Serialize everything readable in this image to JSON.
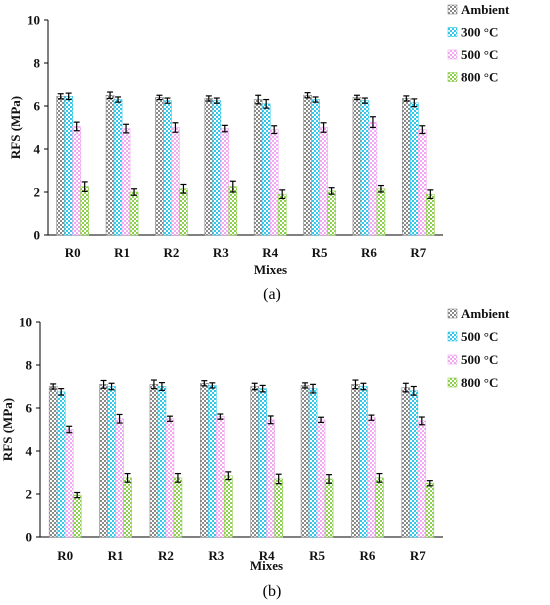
{
  "chart_data": [
    {
      "type": "bar",
      "caption": "(a)",
      "xlabel": "Mixes",
      "ylabel": "RFS (MPa)",
      "ylim": [
        0,
        10
      ],
      "yticks": [
        0,
        2,
        4,
        6,
        8,
        10
      ],
      "categories": [
        "R0",
        "R1",
        "R2",
        "R3",
        "R4",
        "R5",
        "R6",
        "R7"
      ],
      "legend_position": "right",
      "error_bars": true,
      "series": [
        {
          "name": "Ambient",
          "color": "#8a8a8a",
          "pattern": "checker",
          "values": [
            6.45,
            6.5,
            6.4,
            6.35,
            6.3,
            6.5,
            6.4,
            6.35
          ],
          "errors": [
            0.12,
            0.15,
            0.1,
            0.12,
            0.2,
            0.12,
            0.1,
            0.12
          ]
        },
        {
          "name": "300 °C",
          "color": "#33c8ea",
          "pattern": "checker",
          "values": [
            6.45,
            6.3,
            6.25,
            6.25,
            6.1,
            6.3,
            6.25,
            6.15
          ],
          "errors": [
            0.15,
            0.12,
            0.12,
            0.12,
            0.2,
            0.12,
            0.12,
            0.18
          ]
        },
        {
          "name": "500 °C",
          "color": "#f0a8f0",
          "pattern": "checker",
          "values": [
            5.05,
            4.95,
            5.0,
            4.95,
            4.9,
            5.0,
            5.25,
            4.9
          ],
          "errors": [
            0.2,
            0.2,
            0.22,
            0.15,
            0.18,
            0.22,
            0.25,
            0.18
          ]
        },
        {
          "name": "800 °C",
          "color": "#8fcf4f",
          "pattern": "checker",
          "values": [
            2.25,
            2.0,
            2.15,
            2.25,
            1.9,
            2.05,
            2.15,
            1.9
          ],
          "errors": [
            0.22,
            0.15,
            0.2,
            0.25,
            0.2,
            0.15,
            0.15,
            0.2
          ]
        }
      ]
    },
    {
      "type": "bar",
      "caption": "(b)",
      "xlabel": "Mixes",
      "ylabel": "RFS (MPa)",
      "ylim": [
        0,
        10
      ],
      "yticks": [
        0,
        2,
        4,
        6,
        8,
        10
      ],
      "categories": [
        "R0",
        "R1",
        "R2",
        "R3",
        "R4",
        "R5",
        "R6",
        "R7"
      ],
      "legend_position": "right",
      "error_bars": true,
      "series": [
        {
          "name": "Ambient",
          "color": "#8a8a8a",
          "pattern": "checker",
          "values": [
            7.0,
            7.1,
            7.1,
            7.15,
            7.0,
            7.05,
            7.1,
            6.95
          ],
          "errors": [
            0.12,
            0.18,
            0.2,
            0.12,
            0.15,
            0.12,
            0.2,
            0.2
          ]
        },
        {
          "name": "500 °C",
          "color": "#33c8ea",
          "pattern": "checker",
          "values": [
            6.75,
            7.0,
            7.0,
            7.05,
            6.9,
            6.9,
            7.0,
            6.8
          ],
          "errors": [
            0.15,
            0.15,
            0.18,
            0.12,
            0.15,
            0.2,
            0.15,
            0.2
          ]
        },
        {
          "name": "500 °C",
          "color": "#f0a8f0",
          "pattern": "checker",
          "values": [
            5.0,
            5.5,
            5.5,
            5.6,
            5.45,
            5.45,
            5.55,
            5.4
          ],
          "errors": [
            0.15,
            0.2,
            0.12,
            0.12,
            0.18,
            0.12,
            0.12,
            0.18
          ]
        },
        {
          "name": "800 °C",
          "color": "#8fcf4f",
          "pattern": "checker",
          "values": [
            1.95,
            2.75,
            2.75,
            2.85,
            2.7,
            2.7,
            2.75,
            2.5
          ],
          "errors": [
            0.12,
            0.2,
            0.2,
            0.18,
            0.22,
            0.2,
            0.2,
            0.12
          ]
        }
      ]
    }
  ]
}
